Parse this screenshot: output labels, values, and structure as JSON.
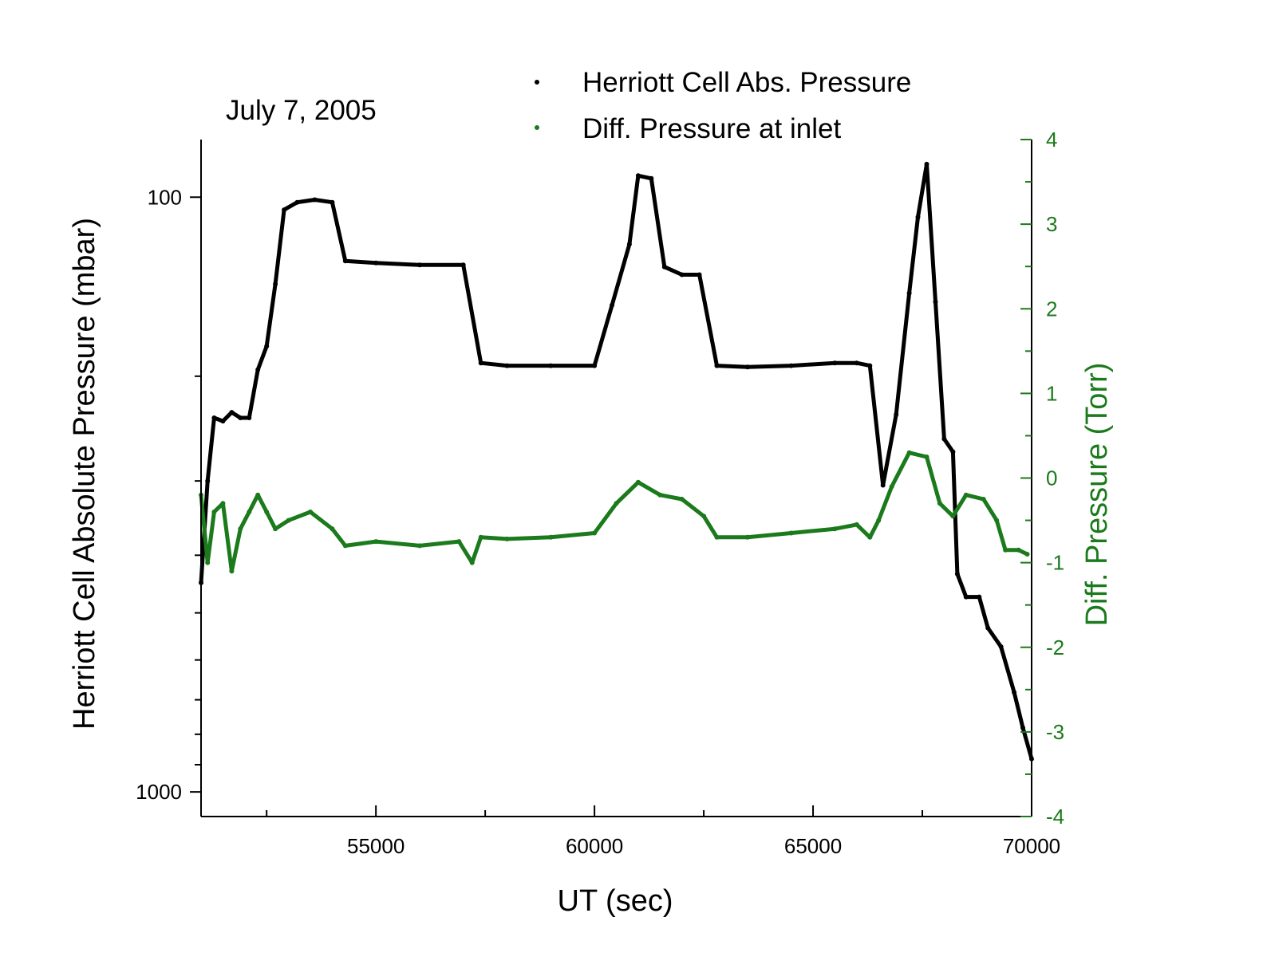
{
  "chart_data": {
    "type": "scatter",
    "annotation": "July 7, 2005",
    "xlabel": "UT (sec)",
    "ylabel_left": "Herriott Cell Absolute Pressure (mbar)",
    "ylabel_right": "Diff. Pressure (Torr)",
    "xlim": [
      51000,
      70000
    ],
    "ylim_left": [
      1100,
      80
    ],
    "y_left_scale": "log-reversed",
    "ylim_right": [
      -4,
      4
    ],
    "x_ticks": [
      55000,
      60000,
      65000,
      70000
    ],
    "x_tick_labels": [
      "55000",
      "60000",
      "65000",
      "70000"
    ],
    "y_left_ticks": [
      100,
      1000
    ],
    "y_left_tick_labels": [
      "100",
      "1000"
    ],
    "y_right_ticks": [
      4,
      3,
      2,
      1,
      0,
      -1,
      -2,
      -3,
      -4
    ],
    "y_right_tick_labels": [
      "4",
      "3",
      "2",
      "1",
      "0",
      "-1",
      "-2",
      "-3",
      "-4"
    ],
    "legend_position": "top",
    "series": [
      {
        "name": "Herriott Cell Abs. Pressure",
        "axis": "left",
        "color": "#000000",
        "points": [
          [
            51000,
            445
          ],
          [
            51150,
            300
          ],
          [
            51300,
            235
          ],
          [
            51500,
            238
          ],
          [
            51700,
            230
          ],
          [
            51900,
            235
          ],
          [
            52100,
            235
          ],
          [
            52300,
            195
          ],
          [
            52500,
            178
          ],
          [
            52700,
            140
          ],
          [
            52900,
            105
          ],
          [
            53200,
            102
          ],
          [
            53600,
            101
          ],
          [
            54000,
            102
          ],
          [
            54300,
            128
          ],
          [
            55000,
            129
          ],
          [
            56000,
            130
          ],
          [
            57000,
            130
          ],
          [
            57400,
            190
          ],
          [
            58000,
            192
          ],
          [
            59000,
            192
          ],
          [
            60000,
            192
          ],
          [
            60400,
            152
          ],
          [
            60800,
            120
          ],
          [
            61000,
            92
          ],
          [
            61300,
            93
          ],
          [
            61600,
            131
          ],
          [
            62000,
            135
          ],
          [
            62400,
            135
          ],
          [
            62800,
            192
          ],
          [
            63500,
            193
          ],
          [
            64500,
            192
          ],
          [
            65500,
            190
          ],
          [
            66000,
            190
          ],
          [
            66300,
            192
          ],
          [
            66600,
            305
          ],
          [
            66900,
            232
          ],
          [
            67200,
            145
          ],
          [
            67400,
            108
          ],
          [
            67600,
            88
          ],
          [
            67800,
            150
          ],
          [
            68000,
            255
          ],
          [
            68200,
            268
          ],
          [
            68300,
            430
          ],
          [
            68500,
            470
          ],
          [
            68800,
            470
          ],
          [
            69000,
            530
          ],
          [
            69300,
            570
          ],
          [
            69600,
            680
          ],
          [
            69800,
            780
          ],
          [
            70000,
            880
          ]
        ]
      },
      {
        "name": "Diff. Pressure at inlet",
        "axis": "right",
        "color": "#1b7a1b",
        "points": [
          [
            51000,
            -0.2
          ],
          [
            51150,
            -1.0
          ],
          [
            51300,
            -0.4
          ],
          [
            51500,
            -0.3
          ],
          [
            51700,
            -1.1
          ],
          [
            51900,
            -0.6
          ],
          [
            52100,
            -0.4
          ],
          [
            52300,
            -0.2
          ],
          [
            52500,
            -0.4
          ],
          [
            52700,
            -0.6
          ],
          [
            53000,
            -0.5
          ],
          [
            53500,
            -0.4
          ],
          [
            54000,
            -0.6
          ],
          [
            54300,
            -0.8
          ],
          [
            55000,
            -0.75
          ],
          [
            56000,
            -0.8
          ],
          [
            56900,
            -0.75
          ],
          [
            57200,
            -1.0
          ],
          [
            57400,
            -0.7
          ],
          [
            58000,
            -0.72
          ],
          [
            59000,
            -0.7
          ],
          [
            60000,
            -0.65
          ],
          [
            60500,
            -0.3
          ],
          [
            61000,
            -0.05
          ],
          [
            61500,
            -0.2
          ],
          [
            62000,
            -0.25
          ],
          [
            62500,
            -0.45
          ],
          [
            62800,
            -0.7
          ],
          [
            63500,
            -0.7
          ],
          [
            64500,
            -0.65
          ],
          [
            65500,
            -0.6
          ],
          [
            66000,
            -0.55
          ],
          [
            66300,
            -0.7
          ],
          [
            66500,
            -0.5
          ],
          [
            66800,
            -0.1
          ],
          [
            67200,
            0.3
          ],
          [
            67600,
            0.25
          ],
          [
            67900,
            -0.3
          ],
          [
            68200,
            -0.45
          ],
          [
            68500,
            -0.2
          ],
          [
            68900,
            -0.25
          ],
          [
            69200,
            -0.5
          ],
          [
            69400,
            -0.85
          ],
          [
            69700,
            -0.85
          ],
          [
            69900,
            -0.9
          ]
        ]
      }
    ]
  }
}
